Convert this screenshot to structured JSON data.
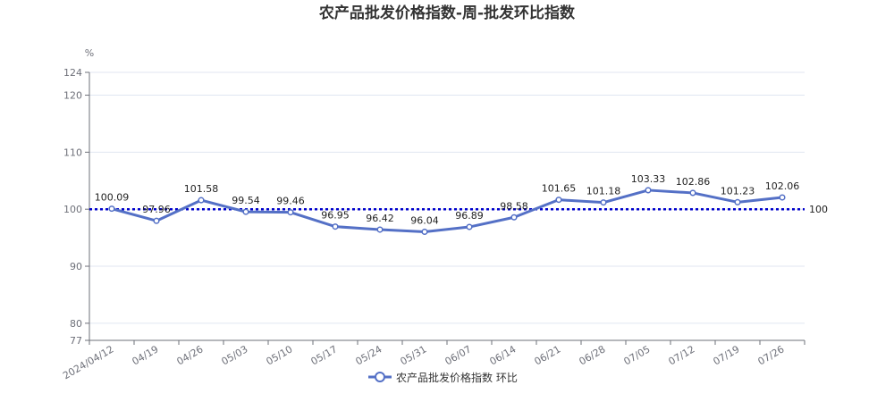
{
  "chart_data": {
    "type": "line",
    "title": "农产品批发价格指数-周-批发环比指数",
    "y_unit": "%",
    "categories": [
      "2024/04/12",
      "04/19",
      "04/26",
      "05/03",
      "05/10",
      "05/17",
      "05/24",
      "05/31",
      "06/07",
      "06/14",
      "06/21",
      "06/28",
      "07/05",
      "07/12",
      "07/19",
      "07/26"
    ],
    "series": [
      {
        "name": "农产品批发价格指数 环比",
        "color": "#5470c6",
        "values": [
          100.09,
          97.96,
          101.58,
          99.54,
          99.46,
          96.95,
          96.42,
          96.04,
          96.89,
          98.58,
          101.65,
          101.18,
          103.33,
          102.86,
          101.23,
          102.06
        ],
        "data_labels": [
          "100.09",
          "97.96",
          "101.58",
          "99.54",
          "99.46",
          "96.95",
          "96.42",
          "96.04",
          "96.89",
          "98.58",
          "101.65",
          "101.18",
          "103.33",
          "102.86",
          "101.23",
          "102.06"
        ]
      }
    ],
    "ylim": [
      77,
      124
    ],
    "yticks": [
      "77",
      "80",
      "90",
      "100",
      "110",
      "120",
      "124"
    ],
    "reference_line": {
      "value": 100,
      "label": "100",
      "color": "#0000cc",
      "style": "dotted"
    },
    "grid": true,
    "legend_position": "bottom"
  }
}
